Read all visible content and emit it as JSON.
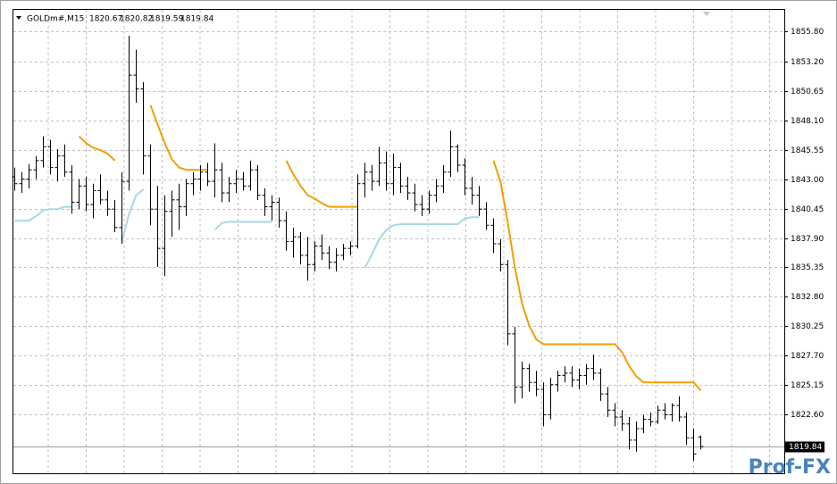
{
  "chart_data": {
    "type": "ohlc",
    "symbol": "GOLDm#,M15",
    "header_values": [
      1820.67,
      1820.82,
      1819.59,
      1819.84
    ],
    "open": [
      1843.2,
      1842.6,
      1843.0,
      1843.8,
      1844.6,
      1845.8,
      1844.0,
      1845.0,
      1843.6,
      1841.0,
      1842.4,
      1840.8,
      1842.0,
      1841.2,
      1840.4,
      1838.8,
      1842.8,
      1852.0,
      1850.8,
      1845.0,
      1840.4,
      1837.0,
      1840.2,
      1841.2,
      1840.6,
      1842.6,
      1843.0,
      1843.6,
      1842.8,
      1843.8,
      1841.8,
      1842.6,
      1843.0,
      1842.4,
      1843.8,
      1841.6,
      1840.6,
      1841.0,
      1839.4,
      1837.6,
      1838.0,
      1836.4,
      1835.6,
      1837.2,
      1836.6,
      1835.8,
      1836.4,
      1837.0,
      1837.2,
      1842.6,
      1843.6,
      1842.8,
      1844.4,
      1842.6,
      1844.0,
      1842.4,
      1841.8,
      1840.8,
      1840.4,
      1841.6,
      1842.4,
      1843.6,
      1845.8,
      1844.2,
      1842.2,
      1841.6,
      1840.4,
      1839.0,
      1837.4,
      1835.6,
      1829.6,
      1825.0,
      1826.6,
      1825.4,
      1824.8,
      1822.6,
      1825.2,
      1826.0,
      1826.2,
      1825.6,
      1826.0,
      1826.6,
      1826.2,
      1824.4,
      1823.0,
      1822.4,
      1821.8,
      1820.4,
      1821.4,
      1822.2,
      1822.0,
      1823.0,
      1822.6,
      1823.4,
      1822.4,
      1820.6,
      1820.67
    ],
    "high": [
      1844.0,
      1843.6,
      1844.3,
      1845.0,
      1846.7,
      1846.4,
      1845.6,
      1846.0,
      1844.2,
      1843.0,
      1843.2,
      1842.6,
      1843.4,
      1842.0,
      1841.2,
      1843.6,
      1855.4,
      1854.2,
      1851.4,
      1846.0,
      1842.4,
      1841.6,
      1842.0,
      1842.6,
      1843.0,
      1843.6,
      1844.2,
      1844.4,
      1846.1,
      1844.4,
      1843.2,
      1843.8,
      1843.6,
      1844.6,
      1844.2,
      1842.2,
      1841.6,
      1841.4,
      1840.2,
      1838.8,
      1838.4,
      1838.0,
      1837.6,
      1838.2,
      1837.2,
      1837.0,
      1837.4,
      1837.6,
      1843.4,
      1844.4,
      1844.2,
      1845.8,
      1845.4,
      1845.2,
      1844.4,
      1843.2,
      1842.6,
      1841.6,
      1842.0,
      1843.0,
      1844.2,
      1847.2,
      1846.0,
      1844.8,
      1843.2,
      1842.4,
      1841.0,
      1839.6,
      1837.8,
      1836.0,
      1830.2,
      1827.2,
      1827.0,
      1826.4,
      1825.4,
      1825.8,
      1826.4,
      1826.8,
      1826.8,
      1826.6,
      1827.0,
      1827.8,
      1826.6,
      1825.0,
      1823.6,
      1823.0,
      1822.4,
      1822.0,
      1822.6,
      1822.8,
      1823.4,
      1823.6,
      1823.6,
      1824.2,
      1822.8,
      1821.4,
      1820.82
    ],
    "low": [
      1842.0,
      1841.8,
      1842.2,
      1843.0,
      1844.0,
      1843.4,
      1842.8,
      1843.2,
      1840.0,
      1840.4,
      1840.2,
      1839.6,
      1840.8,
      1839.8,
      1838.4,
      1837.4,
      1842.0,
      1849.6,
      1843.4,
      1839.0,
      1835.4,
      1834.6,
      1838.0,
      1838.6,
      1839.8,
      1841.6,
      1842.0,
      1842.4,
      1841.4,
      1841.0,
      1841.0,
      1841.8,
      1842.0,
      1842.0,
      1841.2,
      1839.8,
      1839.4,
      1838.8,
      1836.8,
      1836.2,
      1835.6,
      1834.2,
      1835.0,
      1836.0,
      1835.2,
      1835.0,
      1836.0,
      1836.4,
      1837.0,
      1841.4,
      1842.0,
      1842.4,
      1842.0,
      1841.6,
      1841.8,
      1841.2,
      1840.2,
      1839.8,
      1840.0,
      1841.0,
      1841.8,
      1843.2,
      1843.6,
      1841.6,
      1840.8,
      1839.8,
      1838.6,
      1836.6,
      1835.0,
      1828.6,
      1823.6,
      1824.0,
      1824.6,
      1824.2,
      1821.6,
      1822.2,
      1824.6,
      1825.4,
      1825.0,
      1824.8,
      1825.2,
      1825.6,
      1823.8,
      1822.4,
      1821.6,
      1821.2,
      1819.6,
      1819.4,
      1821.0,
      1821.6,
      1821.8,
      1822.2,
      1822.0,
      1822.0,
      1820.0,
      1818.6,
      1819.59
    ],
    "close": [
      1842.6,
      1843.0,
      1843.8,
      1844.6,
      1845.8,
      1844.0,
      1845.0,
      1843.6,
      1841.0,
      1842.4,
      1840.8,
      1842.0,
      1841.2,
      1840.4,
      1838.8,
      1842.8,
      1852.0,
      1850.8,
      1845.0,
      1840.4,
      1837.0,
      1840.2,
      1841.2,
      1840.6,
      1842.6,
      1843.0,
      1843.6,
      1842.8,
      1843.8,
      1841.8,
      1842.6,
      1843.0,
      1842.4,
      1843.8,
      1841.6,
      1840.6,
      1841.0,
      1839.4,
      1837.6,
      1838.0,
      1836.4,
      1835.6,
      1837.2,
      1836.6,
      1835.8,
      1836.4,
      1837.0,
      1837.2,
      1842.6,
      1843.6,
      1842.8,
      1844.4,
      1842.6,
      1844.0,
      1842.4,
      1841.8,
      1840.8,
      1840.4,
      1841.6,
      1842.4,
      1843.6,
      1845.8,
      1844.2,
      1842.2,
      1841.6,
      1840.4,
      1839.0,
      1837.4,
      1835.6,
      1829.6,
      1825.0,
      1826.6,
      1825.4,
      1824.8,
      1822.6,
      1825.2,
      1826.0,
      1826.2,
      1825.6,
      1826.0,
      1826.6,
      1826.2,
      1824.4,
      1823.0,
      1822.4,
      1821.8,
      1820.4,
      1821.4,
      1822.2,
      1822.0,
      1823.0,
      1822.6,
      1823.4,
      1822.4,
      1820.6,
      1819.2,
      1819.84
    ],
    "lines": [
      {
        "color": "#f0a000",
        "values": [
          null,
          null,
          null,
          null,
          null,
          null,
          null,
          null,
          null,
          1846.7,
          1846.1,
          1845.7,
          1845.5,
          1845.2,
          1844.6,
          null,
          null,
          null,
          null,
          1849.4,
          1847.7,
          1846.1,
          1844.7,
          1844.0,
          1843.8,
          1843.8,
          1843.8,
          1843.8,
          null,
          null,
          null,
          null,
          null,
          null,
          null,
          null,
          null,
          null,
          1844.6,
          1843.4,
          1842.4,
          1841.6,
          1841.3,
          1840.9,
          1840.6,
          1840.6,
          1840.6,
          1840.6,
          1840.6,
          null,
          null,
          null,
          null,
          null,
          null,
          null,
          null,
          null,
          null,
          null,
          null,
          null,
          null,
          null,
          null,
          null,
          null,
          1844.6,
          1842.7,
          1839.2,
          1835.3,
          1832.2,
          1830.3,
          1829.1,
          1828.7,
          1828.7,
          1828.7,
          1828.7,
          1828.7,
          1828.7,
          1828.7,
          1828.7,
          1828.7,
          1828.7,
          1828.7,
          1828.0,
          1826.8,
          1825.9,
          1825.4,
          1825.4,
          1825.4,
          1825.4,
          1825.4,
          1825.4,
          1825.4,
          1825.4,
          1824.7
        ]
      },
      {
        "color": "#a8d8e8",
        "values": [
          1839.4,
          1839.4,
          1839.4,
          1839.8,
          1840.3,
          1840.4,
          1840.4,
          1840.6,
          1840.6,
          null,
          null,
          null,
          null,
          null,
          null,
          1837.6,
          1840.0,
          1841.6,
          1842.1,
          null,
          null,
          null,
          null,
          null,
          null,
          null,
          null,
          null,
          1838.6,
          1839.2,
          1839.3,
          1839.3,
          1839.3,
          1839.3,
          1839.3,
          1839.3,
          1839.3,
          null,
          null,
          null,
          null,
          null,
          null,
          null,
          null,
          null,
          null,
          null,
          null,
          1835.3,
          1836.5,
          1837.8,
          1838.6,
          1839.0,
          1839.1,
          1839.1,
          1839.1,
          1839.1,
          1839.1,
          1839.1,
          1839.1,
          1839.1,
          1839.1,
          1839.6,
          1839.7,
          1839.7,
          null,
          null,
          null,
          null,
          null,
          null,
          null,
          null,
          null,
          null,
          null,
          null,
          null,
          null,
          null,
          null,
          null,
          null,
          null,
          null,
          null,
          null,
          null,
          null,
          null,
          null,
          null,
          null,
          null,
          null,
          null
        ]
      }
    ],
    "ylim": [
      1817.53,
      1857.73
    ],
    "yticks": [
      {
        "value": 1855.8,
        "label": "1855.80"
      },
      {
        "value": 1853.2,
        "label": "1853.20"
      },
      1850.65,
      {
        "value": 1848.1,
        "label": "1848.10"
      },
      1845.55,
      {
        "value": 1843,
        "label": "1843.00"
      },
      1840.45,
      {
        "value": 1837.9,
        "label": "1837.90"
      },
      1835.35,
      {
        "value": 1832.8,
        "label": "1832.80"
      },
      1830.25,
      {
        "value": 1827.7,
        "label": "1827.70"
      },
      1825.15,
      {
        "value": 1822.6,
        "label": "1822.60"
      }
    ],
    "grid": true,
    "last_price": 1819.84,
    "watermark": "Prof-FX"
  }
}
